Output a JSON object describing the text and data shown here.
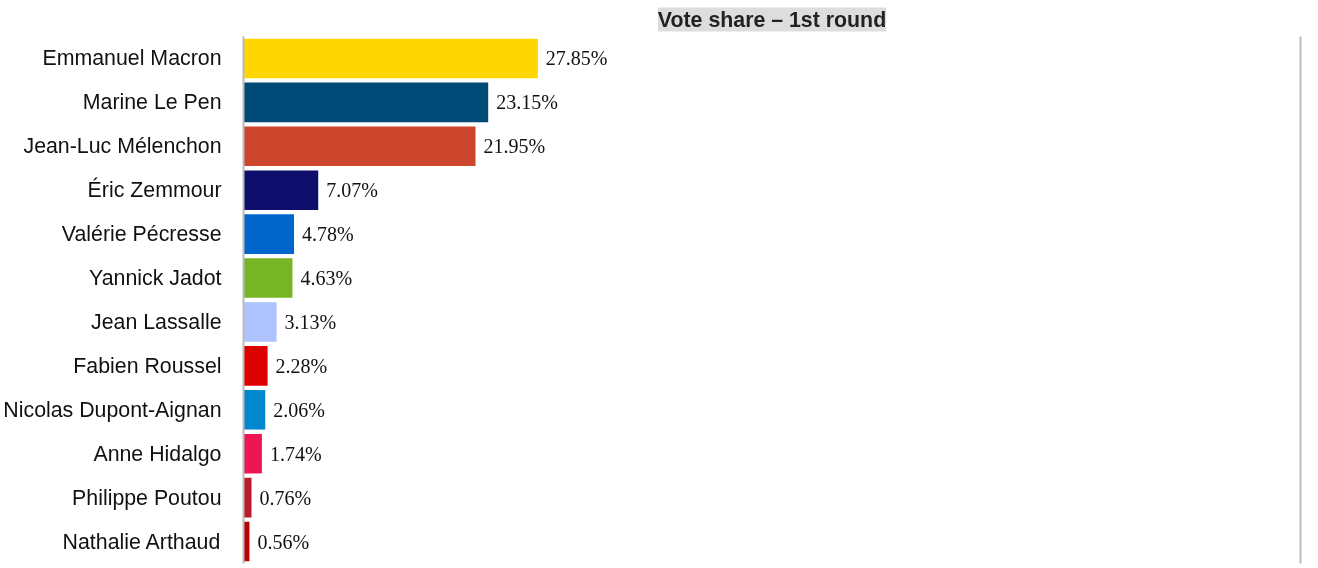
{
  "chart_data": {
    "type": "bar",
    "orientation": "horizontal",
    "title": "Vote share – 1st round",
    "categories": [
      "Emmanuel Macron",
      "Marine Le Pen",
      "Jean-Luc Mélenchon",
      "Éric Zemmour",
      "Valérie Pécresse",
      "Yannick Jadot",
      "Jean Lassalle",
      "Fabien Roussel",
      "Nicolas Dupont-Aignan",
      "Anne Hidalgo",
      "Philippe Poutou",
      "Nathalie Arthaud"
    ],
    "values": [
      27.85,
      23.15,
      21.95,
      7.07,
      4.78,
      4.63,
      3.13,
      2.28,
      2.06,
      1.74,
      0.76,
      0.56
    ],
    "value_labels": [
      "27.85%",
      "23.15%",
      "21.95%",
      "7.07%",
      "4.78%",
      "4.63%",
      "3.13%",
      "2.28%",
      "2.06%",
      "1.74%",
      "0.76%",
      "0.56%"
    ],
    "colors": [
      "#ffd600",
      "#004a77",
      "#cc462d",
      "#0d0d6b",
      "#0066cc",
      "#78b525",
      "#adc2ff",
      "#dd0000",
      "#0087cd",
      "#ed1651",
      "#bb1a2c",
      "#bb0000"
    ],
    "xlim": [
      0,
      100
    ],
    "tick_labels": "y",
    "grid": false
  }
}
